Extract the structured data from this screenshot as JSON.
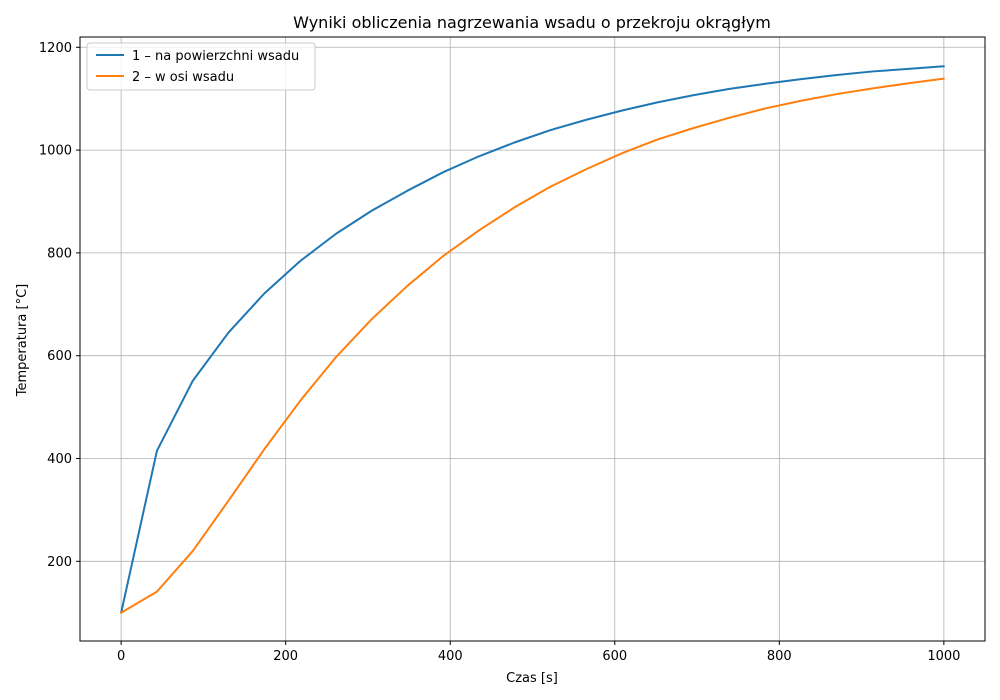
{
  "chart_data": {
    "type": "line",
    "title": "Wyniki obliczenia nagrzewania wsadu o przekroju okrągłym",
    "xlabel": "Czas [s]",
    "ylabel": "Temperatura [°C]",
    "xlim": [
      -50,
      1050
    ],
    "ylim": [
      45,
      1220
    ],
    "xticks": [
      0,
      200,
      400,
      600,
      800,
      1000
    ],
    "yticks": [
      200,
      400,
      600,
      800,
      1000,
      1200
    ],
    "grid": true,
    "legend_position": "top-left",
    "series": [
      {
        "name": "1 – na powierzchni wsadu",
        "color": "#1f77b4",
        "x": [
          0,
          43.5,
          87,
          130.5,
          174,
          217.5,
          261,
          304.5,
          348,
          391.5,
          435,
          478.5,
          522,
          565.5,
          609,
          652.5,
          696,
          739.5,
          783,
          826.5,
          870,
          913.5,
          957,
          1000
        ],
        "y": [
          100,
          415,
          551,
          645,
          721,
          784,
          837,
          882,
          921,
          957,
          988,
          1015,
          1039,
          1059,
          1077,
          1093,
          1107,
          1119,
          1129,
          1138,
          1146,
          1153,
          1158,
          1163
        ]
      },
      {
        "name": "2 – w osi wsadu",
        "color": "#ff7f0e",
        "x": [
          0,
          43.5,
          87,
          130.5,
          174,
          217.5,
          261,
          304.5,
          348,
          391.5,
          435,
          478.5,
          522,
          565.5,
          609,
          652.5,
          696,
          739.5,
          783,
          826.5,
          870,
          913.5,
          957,
          1000
        ],
        "y": [
          100,
          141,
          220,
          318,
          418,
          512,
          597,
          671,
          736,
          794,
          844,
          889,
          929,
          963,
          994,
          1021,
          1043,
          1063,
          1081,
          1096,
          1109,
          1120,
          1130,
          1139
        ]
      }
    ]
  }
}
